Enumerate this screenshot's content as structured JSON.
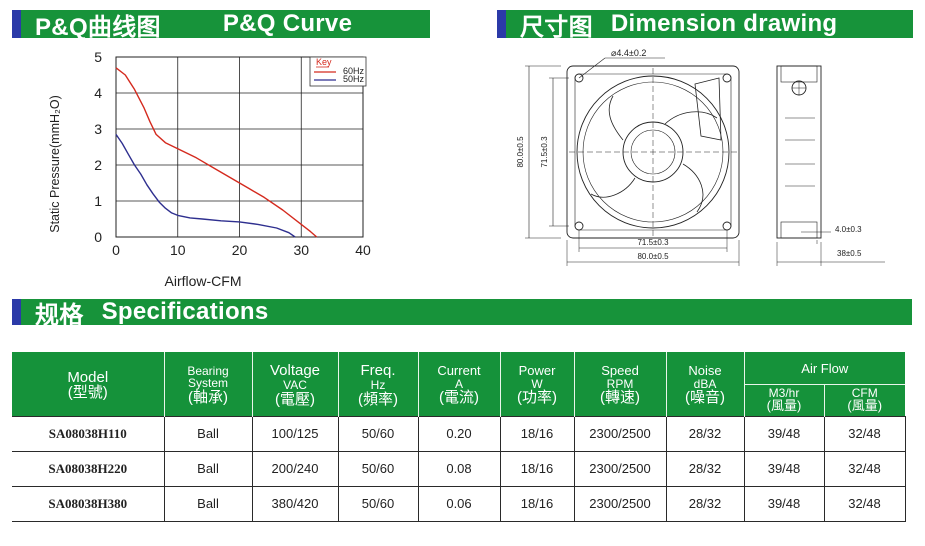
{
  "banners": {
    "pq": {
      "cn": "P&Q曲线图",
      "en": "P&Q Curve"
    },
    "dimension": {
      "cn": "尺寸图",
      "en": "Dimension drawing"
    },
    "specs": {
      "cn": "规格",
      "en": "Specifications"
    }
  },
  "chart_data": {
    "type": "line",
    "xlabel": "Airflow-CFM",
    "ylabel": "Static Pressure(mmH₂O)",
    "xlim": [
      0,
      40
    ],
    "ylim": [
      0,
      5
    ],
    "xticks": [
      0,
      10,
      20,
      30,
      40
    ],
    "yticks": [
      0,
      1,
      2,
      3,
      4,
      5
    ],
    "grid": true,
    "legend": {
      "title": "Key",
      "position": "top-right"
    },
    "series": [
      {
        "name": "60Hz",
        "color": "#d42a1e",
        "x": [
          0,
          1.5,
          3,
          4.5,
          5.5,
          6.5,
          8,
          10,
          13,
          16,
          19,
          21.5,
          24,
          27,
          30,
          31.5,
          32.5
        ],
        "y": [
          4.7,
          4.5,
          4.1,
          3.6,
          3.2,
          2.85,
          2.62,
          2.45,
          2.2,
          1.9,
          1.6,
          1.35,
          1.1,
          0.75,
          0.35,
          0.15,
          0
        ]
      },
      {
        "name": "50Hz",
        "color": "#2e2f8f",
        "x": [
          0,
          1,
          2,
          3,
          4,
          5,
          6,
          7,
          8,
          9,
          10,
          12,
          14,
          17,
          20,
          23,
          26,
          28,
          29
        ],
        "y": [
          2.85,
          2.6,
          2.3,
          2.0,
          1.75,
          1.45,
          1.2,
          0.97,
          0.8,
          0.67,
          0.6,
          0.53,
          0.5,
          0.45,
          0.42,
          0.35,
          0.25,
          0.12,
          0
        ]
      }
    ]
  },
  "dimension": {
    "hole": "4.4±0.2",
    "height_outer": "80.0±0.5",
    "height_inner": "71.5±0.3",
    "width_inner": "71.5±0.3",
    "width_outer": "80.0±0.5",
    "flange": "4.0±0.3",
    "depth": "38±0.5"
  },
  "specs": {
    "headers": {
      "model": {
        "en": "Model",
        "cn": "(型號)"
      },
      "bearing": {
        "en1": "Bearing",
        "en2": "System",
        "cn": "(軸承)"
      },
      "voltage": {
        "en": "Voltage",
        "unit": "VAC",
        "cn": "(電壓)"
      },
      "freq": {
        "en": "Freq.",
        "unit": "Hz",
        "cn": "(頻率)"
      },
      "current": {
        "en": "Current",
        "unit": "A",
        "cn": "(電流)"
      },
      "power": {
        "en": "Power",
        "unit": "W",
        "cn": "(功率)"
      },
      "speed": {
        "en": "Speed",
        "unit": "RPM",
        "cn": "(轉速)"
      },
      "noise": {
        "en": "Noise",
        "unit": "dBA",
        "cn": "(噪音)"
      },
      "airflow": {
        "en": "Air Flow"
      },
      "m3hr": {
        "unit": "M3/hr",
        "cn": "(風量)"
      },
      "cfm": {
        "unit": "CFM",
        "cn": "(風量)"
      }
    },
    "rows": [
      {
        "model": "SA08038H110",
        "bearing": "Ball",
        "voltage": "100/125",
        "freq": "50/60",
        "current": "0.20",
        "power": "18/16",
        "speed": "2300/2500",
        "noise": "28/32",
        "m3hr": "39/48",
        "cfm": "32/48"
      },
      {
        "model": "SA08038H220",
        "bearing": "Ball",
        "voltage": "200/240",
        "freq": "50/60",
        "current": "0.08",
        "power": "18/16",
        "speed": "2300/2500",
        "noise": "28/32",
        "m3hr": "39/48",
        "cfm": "32/48"
      },
      {
        "model": "SA08038H380",
        "bearing": "Ball",
        "voltage": "380/420",
        "freq": "50/60",
        "current": "0.06",
        "power": "18/16",
        "speed": "2300/2500",
        "noise": "28/32",
        "m3hr": "39/48",
        "cfm": "32/48"
      }
    ]
  }
}
